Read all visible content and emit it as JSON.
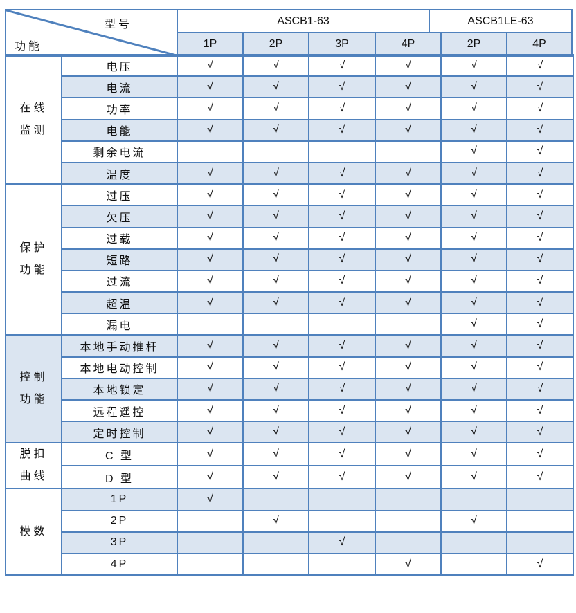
{
  "header": {
    "corner_top": "型号",
    "corner_bottom": "功能",
    "models": [
      {
        "name": "ASCB1-63"
      },
      {
        "name": "ASCB1LE-63"
      }
    ],
    "poles": [
      "1P",
      "2P",
      "3P",
      "4P",
      "2P",
      "4P"
    ]
  },
  "check_symbol": "√",
  "colors": {
    "border": "#4f81bd",
    "shade": "#dbe5f1"
  },
  "groups": [
    {
      "label_line1": "在线",
      "label_line2": "监测",
      "rows": [
        {
          "feature": "电压",
          "checks": [
            true,
            true,
            true,
            true,
            true,
            true
          ]
        },
        {
          "feature": "电流",
          "checks": [
            true,
            true,
            true,
            true,
            true,
            true
          ]
        },
        {
          "feature": "功率",
          "checks": [
            true,
            true,
            true,
            true,
            true,
            true
          ]
        },
        {
          "feature": "电能",
          "checks": [
            true,
            true,
            true,
            true,
            true,
            true
          ]
        },
        {
          "feature": "剩余电流",
          "checks": [
            false,
            false,
            false,
            false,
            true,
            true
          ]
        },
        {
          "feature": "温度",
          "checks": [
            true,
            true,
            true,
            true,
            true,
            true
          ]
        }
      ]
    },
    {
      "label_line1": "保护",
      "label_line2": "功能",
      "rows": [
        {
          "feature": "过压",
          "checks": [
            true,
            true,
            true,
            true,
            true,
            true
          ]
        },
        {
          "feature": "欠压",
          "checks": [
            true,
            true,
            true,
            true,
            true,
            true
          ]
        },
        {
          "feature": "过载",
          "checks": [
            true,
            true,
            true,
            true,
            true,
            true
          ]
        },
        {
          "feature": "短路",
          "checks": [
            true,
            true,
            true,
            true,
            true,
            true
          ]
        },
        {
          "feature": "过流",
          "checks": [
            true,
            true,
            true,
            true,
            true,
            true
          ]
        },
        {
          "feature": "超温",
          "checks": [
            true,
            true,
            true,
            true,
            true,
            true
          ]
        },
        {
          "feature": "漏电",
          "checks": [
            false,
            false,
            false,
            false,
            true,
            true
          ]
        }
      ]
    },
    {
      "label_line1": "控制",
      "label_line2": "功能",
      "rows": [
        {
          "feature": "本地手动推杆",
          "checks": [
            true,
            true,
            true,
            true,
            true,
            true
          ]
        },
        {
          "feature": "本地电动控制",
          "checks": [
            true,
            true,
            true,
            true,
            true,
            true
          ]
        },
        {
          "feature": "本地锁定",
          "checks": [
            true,
            true,
            true,
            true,
            true,
            true
          ]
        },
        {
          "feature": "远程遥控",
          "checks": [
            true,
            true,
            true,
            true,
            true,
            true
          ]
        },
        {
          "feature": "定时控制",
          "checks": [
            true,
            true,
            true,
            true,
            true,
            true
          ]
        }
      ]
    },
    {
      "label_line1": "脱扣",
      "label_line2": "曲线",
      "rows": [
        {
          "feature": "C 型",
          "checks": [
            true,
            true,
            true,
            true,
            true,
            true
          ]
        },
        {
          "feature": "D 型",
          "checks": [
            true,
            true,
            true,
            true,
            true,
            true
          ]
        }
      ]
    },
    {
      "label_line1": "模数",
      "label_line2": "",
      "rows": [
        {
          "feature": "1P",
          "checks": [
            true,
            false,
            false,
            false,
            false,
            false
          ]
        },
        {
          "feature": "2P",
          "checks": [
            false,
            true,
            false,
            false,
            true,
            false
          ]
        },
        {
          "feature": "3P",
          "checks": [
            false,
            false,
            true,
            false,
            false,
            false
          ]
        },
        {
          "feature": "4P",
          "checks": [
            false,
            false,
            false,
            true,
            false,
            true
          ]
        }
      ]
    }
  ]
}
